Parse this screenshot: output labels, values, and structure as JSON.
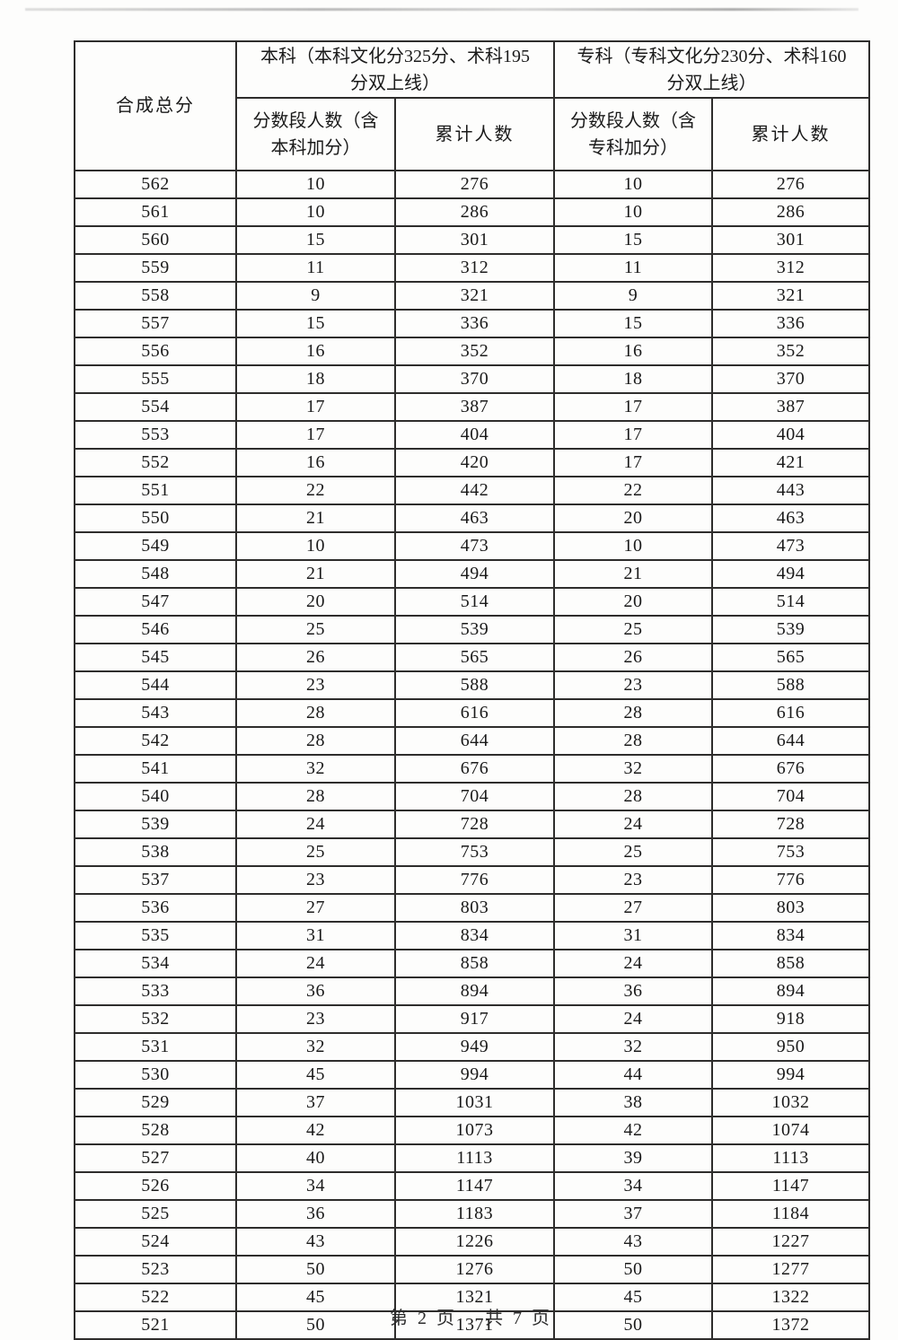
{
  "table": {
    "corner_header": "合成总分",
    "groups": [
      {
        "title": "本科（本科文化分325分、术科195分双上线）",
        "segment_header": "分数段人数（含本科加分）",
        "cumulative_header": "累计人数"
      },
      {
        "title": "专科（专科文化分230分、术科160分双上线）",
        "segment_header": "分数段人数（含专科加分）",
        "cumulative_header": "累计人数"
      }
    ]
  },
  "footer": {
    "page": "第 2 页",
    "total": "共 7 页"
  },
  "chart_data": {
    "type": "table",
    "columns": [
      "合成总分",
      "本科 分数段人数（含本科加分）",
      "本科 累计人数",
      "专科 分数段人数（含专科加分）",
      "专科 累计人数"
    ],
    "rows": [
      [
        562,
        10,
        276,
        10,
        276
      ],
      [
        561,
        10,
        286,
        10,
        286
      ],
      [
        560,
        15,
        301,
        15,
        301
      ],
      [
        559,
        11,
        312,
        11,
        312
      ],
      [
        558,
        9,
        321,
        9,
        321
      ],
      [
        557,
        15,
        336,
        15,
        336
      ],
      [
        556,
        16,
        352,
        16,
        352
      ],
      [
        555,
        18,
        370,
        18,
        370
      ],
      [
        554,
        17,
        387,
        17,
        387
      ],
      [
        553,
        17,
        404,
        17,
        404
      ],
      [
        552,
        16,
        420,
        17,
        421
      ],
      [
        551,
        22,
        442,
        22,
        443
      ],
      [
        550,
        21,
        463,
        20,
        463
      ],
      [
        549,
        10,
        473,
        10,
        473
      ],
      [
        548,
        21,
        494,
        21,
        494
      ],
      [
        547,
        20,
        514,
        20,
        514
      ],
      [
        546,
        25,
        539,
        25,
        539
      ],
      [
        545,
        26,
        565,
        26,
        565
      ],
      [
        544,
        23,
        588,
        23,
        588
      ],
      [
        543,
        28,
        616,
        28,
        616
      ],
      [
        542,
        28,
        644,
        28,
        644
      ],
      [
        541,
        32,
        676,
        32,
        676
      ],
      [
        540,
        28,
        704,
        28,
        704
      ],
      [
        539,
        24,
        728,
        24,
        728
      ],
      [
        538,
        25,
        753,
        25,
        753
      ],
      [
        537,
        23,
        776,
        23,
        776
      ],
      [
        536,
        27,
        803,
        27,
        803
      ],
      [
        535,
        31,
        834,
        31,
        834
      ],
      [
        534,
        24,
        858,
        24,
        858
      ],
      [
        533,
        36,
        894,
        36,
        894
      ],
      [
        532,
        23,
        917,
        24,
        918
      ],
      [
        531,
        32,
        949,
        32,
        950
      ],
      [
        530,
        45,
        994,
        44,
        994
      ],
      [
        529,
        37,
        1031,
        38,
        1032
      ],
      [
        528,
        42,
        1073,
        42,
        1074
      ],
      [
        527,
        40,
        1113,
        39,
        1113
      ],
      [
        526,
        34,
        1147,
        34,
        1147
      ],
      [
        525,
        36,
        1183,
        37,
        1184
      ],
      [
        524,
        43,
        1226,
        43,
        1227
      ],
      [
        523,
        50,
        1276,
        50,
        1277
      ],
      [
        522,
        45,
        1321,
        45,
        1322
      ],
      [
        521,
        50,
        1371,
        50,
        1372
      ]
    ]
  }
}
